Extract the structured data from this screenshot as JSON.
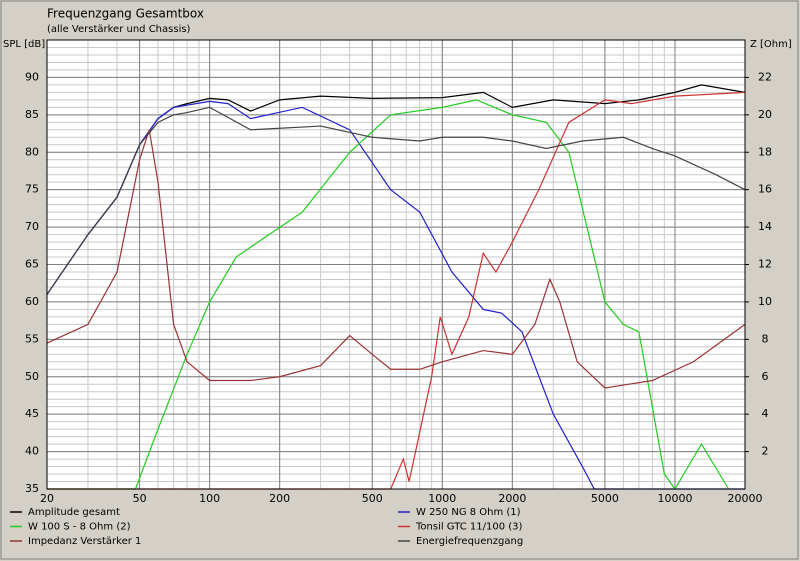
{
  "chart_data": {
    "type": "line",
    "title": "Frequenzgang Gesamtbox",
    "subtitle": "(alle Verstärker und Chassis)",
    "y_label": "SPL [dB]",
    "y2_label": "Z [Ohm]",
    "log_x": true,
    "grid": true,
    "xlim": [
      20,
      20000
    ],
    "xticks": [
      20,
      50,
      100,
      200,
      500,
      1000,
      2000,
      5000,
      10000,
      20000
    ],
    "ylim": [
      35,
      95
    ],
    "yticks": [
      35,
      40,
      45,
      50,
      55,
      60,
      65,
      70,
      75,
      80,
      85,
      90
    ],
    "y2lim": [
      0,
      24
    ],
    "y2ticks": [
      2,
      4,
      6,
      8,
      10,
      12,
      14,
      16,
      18,
      20,
      22
    ],
    "series": [
      {
        "name": "Amplitude gesamt",
        "color": "#000000",
        "x": [
          20,
          30,
          40,
          50,
          60,
          70,
          80,
          100,
          120,
          150,
          200,
          300,
          500,
          1000,
          1500,
          2000,
          3000,
          5000,
          7000,
          10000,
          13000,
          20000
        ],
        "values": [
          61,
          69,
          74,
          81,
          84.5,
          86,
          86.5,
          87.2,
          87,
          85.5,
          87,
          87.5,
          87.2,
          87.3,
          88,
          86,
          87,
          86.5,
          87,
          88,
          89,
          88
        ]
      },
      {
        "name": "W 250 NG 8 Ohm (1)",
        "color": "#2222cc",
        "x": [
          20,
          30,
          40,
          50,
          60,
          70,
          80,
          100,
          120,
          150,
          250,
          400,
          600,
          800,
          1100,
          1500,
          1800,
          2200,
          3000,
          4000,
          4500,
          20000
        ],
        "values": [
          61,
          69,
          74,
          81,
          84.5,
          86,
          86.3,
          86.8,
          86.5,
          84.5,
          86,
          83,
          75,
          72,
          64,
          59,
          58.5,
          56,
          45,
          38,
          35,
          35
        ]
      },
      {
        "name": "W 100 S - 8 Ohm (2)",
        "color": "#22cc22",
        "x": [
          20,
          48,
          60,
          80,
          100,
          130,
          180,
          250,
          400,
          600,
          1000,
          1400,
          2000,
          2800,
          3500,
          5000,
          6000,
          7000,
          9000,
          10000,
          13000,
          17000
        ],
        "values": [
          35,
          35,
          43,
          53,
          60,
          66,
          69,
          72,
          80,
          85,
          86,
          87,
          85,
          84,
          80,
          60,
          57,
          56,
          37,
          35,
          41,
          35
        ]
      },
      {
        "name": "Tonsil GTC 11/100 (3)",
        "color": "#cc3333",
        "x": [
          20,
          600,
          680,
          720,
          900,
          980,
          1100,
          1300,
          1500,
          1700,
          2000,
          2600,
          3500,
          5000,
          6500,
          10000,
          20000
        ],
        "values": [
          35,
          35,
          39,
          36,
          50,
          58,
          53,
          58,
          66.5,
          64,
          68,
          75,
          84,
          87,
          86.5,
          87.5,
          88
        ]
      },
      {
        "name": "Impedanz Verstärker 1",
        "color": "#993333",
        "axis": "y2",
        "x": [
          20,
          30,
          40,
          50,
          55,
          60,
          70,
          80,
          100,
          150,
          200,
          300,
          400,
          500,
          600,
          800,
          1000,
          1500,
          2000,
          2500,
          2900,
          3200,
          3800,
          5000,
          8000,
          12000,
          20000
        ],
        "values": [
          7.8,
          8.8,
          11.6,
          17.6,
          19.2,
          16.4,
          8.8,
          6.8,
          5.8,
          5.8,
          6,
          6.6,
          8.2,
          7.2,
          6.4,
          6.4,
          6.8,
          7.4,
          7.2,
          8.8,
          11.2,
          10,
          6.8,
          5.4,
          5.8,
          6.8,
          8.8
        ]
      },
      {
        "name": "Energiefrequenzgang",
        "color": "#444444",
        "x": [
          20,
          30,
          40,
          50,
          60,
          70,
          80,
          100,
          150,
          300,
          500,
          800,
          1000,
          1500,
          2000,
          2800,
          4000,
          6000,
          8000,
          10000,
          15000,
          20000
        ],
        "values": [
          61,
          69,
          74,
          81,
          84,
          85,
          85.3,
          86,
          83,
          83.5,
          82,
          81.5,
          82,
          82,
          81.5,
          80.5,
          81.5,
          82,
          80.5,
          79.5,
          77,
          75
        ]
      }
    ]
  }
}
